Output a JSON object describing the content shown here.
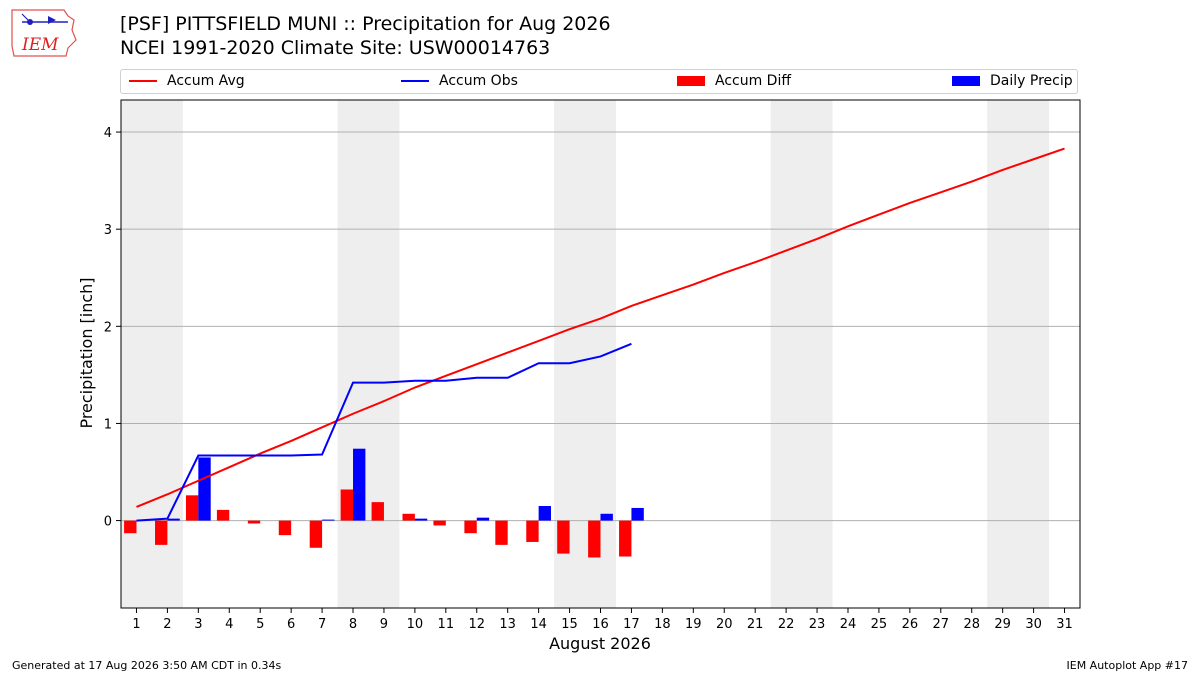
{
  "header": {
    "title_line1": "[PSF] PITTSFIELD MUNI :: Precipitation for Aug 2026",
    "title_line2": "NCEI 1991-2020 Climate Site: USW00014763"
  },
  "logo": {
    "text": "IEM",
    "color": "#ff0000"
  },
  "legend": {
    "placement": "top",
    "items": [
      {
        "label": "Accum Avg",
        "kind": "line",
        "color": "#ff0000"
      },
      {
        "label": "Accum Obs",
        "kind": "line",
        "color": "#0000ff"
      },
      {
        "label": "Accum Diff",
        "kind": "bar",
        "color": "#ff0000"
      },
      {
        "label": "Daily Precip",
        "kind": "bar",
        "color": "#0000ff"
      }
    ]
  },
  "footer": {
    "left": "Generated at 17 Aug 2026 3:50 AM CDT in 0.34s",
    "right": "IEM Autoplot App #17"
  },
  "chart_data": {
    "type": "line",
    "xlabel": "August 2026",
    "ylabel": "Precipitation [inch]",
    "xlim": [
      0.5,
      31.5
    ],
    "ylim": [
      -0.9,
      4.33
    ],
    "x_ticks": [
      1,
      2,
      3,
      4,
      5,
      6,
      7,
      8,
      9,
      10,
      11,
      12,
      13,
      14,
      15,
      16,
      17,
      18,
      19,
      20,
      21,
      22,
      23,
      24,
      25,
      26,
      27,
      28,
      29,
      30,
      31
    ],
    "y_ticks": [
      0,
      1,
      2,
      3,
      4
    ],
    "grid": "horizontal",
    "weekend_shading": [
      [
        0.5,
        2.5
      ],
      [
        7.5,
        9.5
      ],
      [
        14.5,
        16.5
      ],
      [
        21.5,
        23.5
      ],
      [
        28.5,
        30.5
      ]
    ],
    "weekend_color": "#eeeeee",
    "series": [
      {
        "name": "Accum Avg",
        "kind": "line",
        "color": "#ff0000",
        "x": [
          1,
          2,
          3,
          4,
          5,
          6,
          7,
          8,
          9,
          10,
          11,
          12,
          13,
          14,
          15,
          16,
          17,
          18,
          19,
          20,
          21,
          22,
          23,
          24,
          25,
          26,
          27,
          28,
          29,
          30,
          31
        ],
        "values": [
          0.14,
          0.27,
          0.41,
          0.55,
          0.69,
          0.82,
          0.96,
          1.1,
          1.23,
          1.37,
          1.49,
          1.61,
          1.73,
          1.85,
          1.97,
          2.08,
          2.21,
          2.32,
          2.43,
          2.55,
          2.66,
          2.78,
          2.9,
          3.03,
          3.15,
          3.27,
          3.38,
          3.49,
          3.61,
          3.72,
          3.83
        ]
      },
      {
        "name": "Accum Obs",
        "kind": "line",
        "color": "#0000ff",
        "x": [
          1,
          2,
          3,
          4,
          5,
          6,
          7,
          8,
          9,
          10,
          11,
          12,
          13,
          14,
          15,
          16,
          17
        ],
        "values": [
          0.0,
          0.02,
          0.67,
          0.67,
          0.67,
          0.67,
          0.68,
          1.42,
          1.42,
          1.44,
          1.44,
          1.47,
          1.47,
          1.62,
          1.62,
          1.69,
          1.82
        ]
      },
      {
        "name": "Accum Diff",
        "kind": "bar",
        "color": "#ff0000",
        "offset": -0.2,
        "x": [
          1,
          2,
          3,
          4,
          5,
          6,
          7,
          8,
          9,
          10,
          11,
          12,
          13,
          14,
          15,
          16,
          17
        ],
        "values": [
          -0.13,
          -0.25,
          0.26,
          0.11,
          -0.03,
          -0.15,
          -0.28,
          0.32,
          0.19,
          0.07,
          -0.05,
          -0.13,
          -0.25,
          -0.22,
          -0.34,
          -0.38,
          -0.37
        ]
      },
      {
        "name": "Daily Precip",
        "kind": "bar",
        "color": "#0000ff",
        "offset": 0.2,
        "x": [
          1,
          2,
          3,
          4,
          5,
          6,
          7,
          8,
          9,
          10,
          11,
          12,
          13,
          14,
          15,
          16,
          17
        ],
        "values": [
          0.0,
          0.02,
          0.65,
          0.0,
          0.0,
          0.0,
          0.01,
          0.74,
          0.0,
          0.02,
          0.0,
          0.03,
          0.0,
          0.15,
          0.0,
          0.07,
          0.13
        ]
      }
    ]
  }
}
